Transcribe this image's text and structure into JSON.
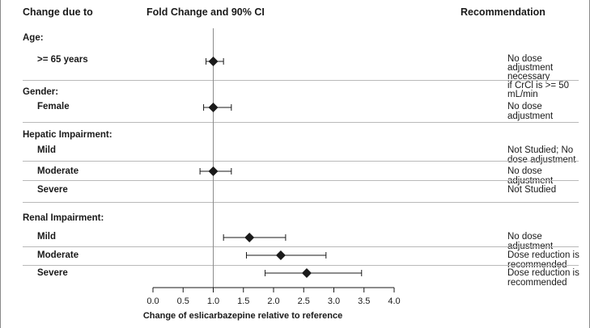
{
  "chart_data": {
    "type": "forest",
    "columns": {
      "left": "Change due to",
      "middle": "Fold Change and 90% CI",
      "right": "Recommendation"
    },
    "xlabel": "Change of eslicarbazepine relative to reference",
    "xlim": [
      0.0,
      4.0
    ],
    "xticks": [
      "0.0",
      "0.5",
      "1.0",
      "1.5",
      "2.0",
      "2.5",
      "3.0",
      "3.5",
      "4.0"
    ],
    "reference_line": 1.0,
    "groups": [
      {
        "name": "Age:",
        "rows": [
          {
            "label": ">= 65 years",
            "estimate": 1.0,
            "ci": [
              0.88,
              1.17
            ],
            "recommendation": [
              "No dose adjustment necessary",
              "if CrCl is >= 50 mL/min"
            ]
          }
        ]
      },
      {
        "name": "Gender:",
        "rows": [
          {
            "label": "Female",
            "estimate": 1.0,
            "ci": [
              0.84,
              1.3
            ],
            "recommendation": [
              "No dose adjustment"
            ]
          }
        ]
      },
      {
        "name": "Hepatic Impairment:",
        "rows": [
          {
            "label": "Mild",
            "estimate": null,
            "ci": null,
            "recommendation": [
              "Not Studied; No dose adjustment"
            ]
          },
          {
            "label": "Moderate",
            "estimate": 1.0,
            "ci": [
              0.78,
              1.3
            ],
            "recommendation": [
              "No dose adjustment"
            ]
          },
          {
            "label": "Severe",
            "estimate": null,
            "ci": null,
            "recommendation": [
              "Not Studied"
            ]
          }
        ]
      },
      {
        "name": "Renal Impairment:",
        "rows": [
          {
            "label": "Mild",
            "estimate": 1.6,
            "ci": [
              1.17,
              2.2
            ],
            "recommendation": [
              "No dose adjustment"
            ]
          },
          {
            "label": "Moderate",
            "estimate": 2.12,
            "ci": [
              1.55,
              2.87
            ],
            "recommendation": [
              "Dose reduction is recommended"
            ]
          },
          {
            "label": "Severe",
            "estimate": 2.55,
            "ci": [
              1.86,
              3.46
            ],
            "recommendation": [
              "Dose reduction is recommended"
            ]
          }
        ]
      }
    ]
  }
}
